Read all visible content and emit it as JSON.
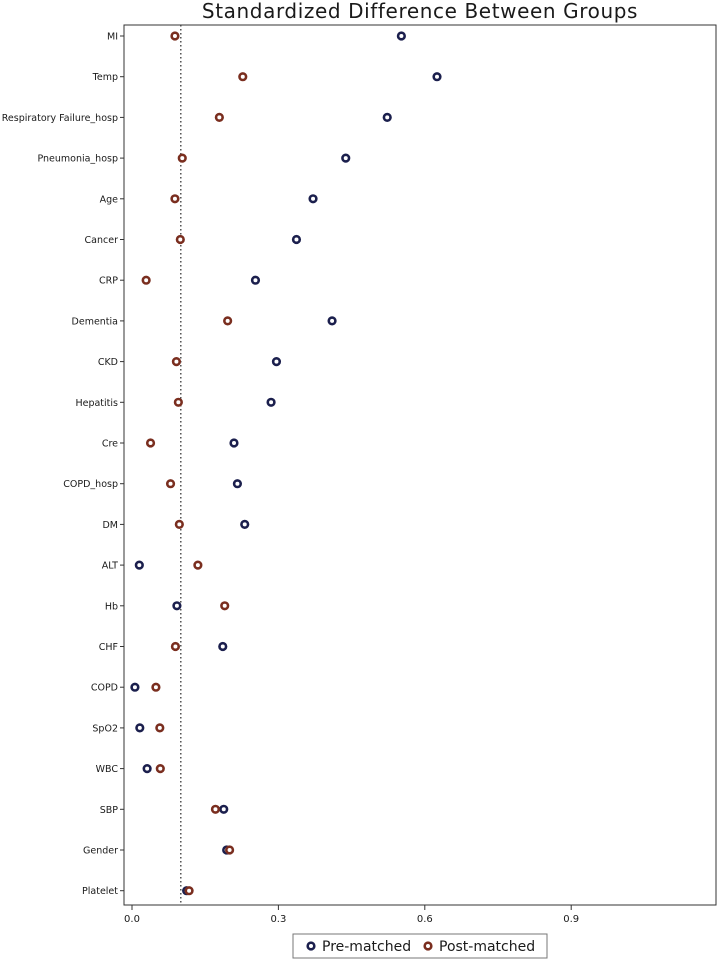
{
  "chart_data": {
    "type": "scatter",
    "title": "Standardized Difference Between Groups",
    "xlabel": "",
    "ylabel": "",
    "xlim": [
      -0.02,
      1.2
    ],
    "xticks": [
      0.0,
      0.3,
      0.6,
      0.9
    ],
    "xtick_labels": [
      "0.0",
      "0.3",
      "0.6",
      "0.9"
    ],
    "reference_line": 0.1,
    "grid": false,
    "legend_position": "bottom-center",
    "categories": [
      "MI",
      "Temp",
      "Acute Respiratory Failure_hosp",
      "Pneumonia_hosp",
      "Age",
      "Cancer",
      "CRP",
      "Dementia",
      "CKD",
      "Hepatitis",
      "Cre",
      "COPD_hosp",
      "DM",
      "ALT",
      "Hb",
      "CHF",
      "COPD",
      "SpO2",
      "WBC",
      "SBP",
      "Gender",
      "Platelet"
    ],
    "series": [
      {
        "name": "Pre-matched",
        "color": "#1b1f4d",
        "values": [
          0.552,
          0.625,
          0.523,
          0.438,
          0.371,
          0.337,
          0.253,
          0.41,
          0.296,
          0.285,
          0.209,
          0.216,
          0.231,
          0.015,
          0.092,
          0.186,
          0.006,
          0.016,
          0.031,
          0.188,
          0.194,
          0.112
        ]
      },
      {
        "name": "Post-matched",
        "color": "#7a2e1f",
        "values": [
          0.088,
          0.227,
          0.179,
          0.103,
          0.088,
          0.099,
          0.029,
          0.196,
          0.091,
          0.095,
          0.038,
          0.079,
          0.097,
          0.135,
          0.19,
          0.089,
          0.049,
          0.057,
          0.058,
          0.171,
          0.2,
          0.117
        ]
      }
    ]
  }
}
